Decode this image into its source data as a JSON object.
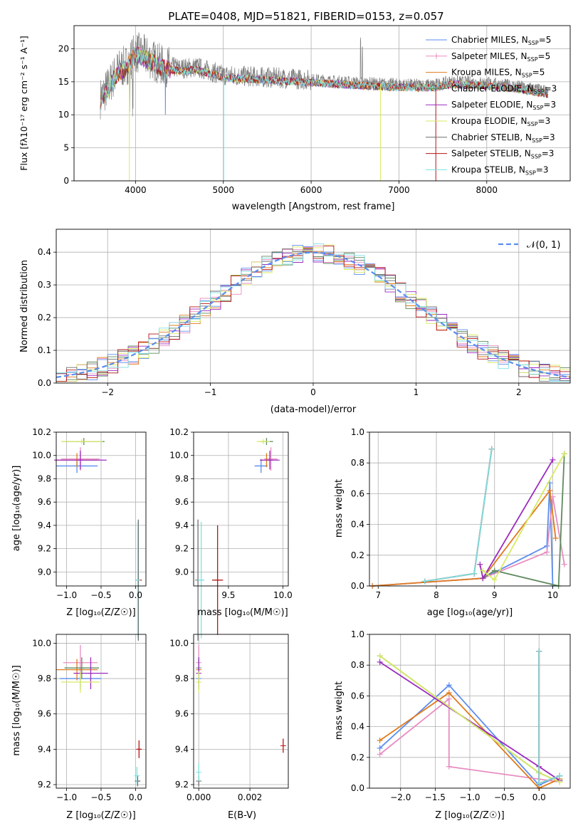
{
  "colors": {
    "chabrier_miles": "#5b8def",
    "salpeter_miles": "#e88cc0",
    "kroupa_miles": "#e07b1d",
    "chabrier_elodie": "#5f8a5f",
    "salpeter_elodie": "#9b2bbf",
    "kroupa_elodie": "#d7ea63",
    "chabrier_stelib": "#6e6e6e",
    "salpeter_stelib": "#b81414",
    "kroupa_stelib": "#7fe0e0"
  },
  "chart_data": [
    {
      "id": "spectrum",
      "type": "line",
      "title": "PLATE=0408, MJD=51821, FIBERID=0153, z=0.057",
      "xlabel": "wavelength [Angstrom, rest frame]",
      "ylabel": "Flux [f_λ10^-17 erg cm^-2 s^-1 A^-1]",
      "xlim": [
        3300,
        8950
      ],
      "ylim": [
        0,
        23.5
      ],
      "xticks": [
        "4000",
        "5000",
        "6000",
        "7000",
        "8000"
      ],
      "yticks": [
        "0",
        "5",
        "10",
        "15",
        "20"
      ],
      "legend_position": "top-right",
      "legend": [
        {
          "label": "Chabrier MILES, N",
          "sub": "SSP",
          "tail": "=5",
          "color": "#5b8def"
        },
        {
          "label": "Salpeter MILES, N",
          "sub": "SSP",
          "tail": "=5",
          "color": "#e88cc0"
        },
        {
          "label": "Kroupa MILES, N",
          "sub": "SSP",
          "tail": "=5",
          "color": "#e07b1d"
        },
        {
          "label": "Chabrier ELODIE, N",
          "sub": "SSP",
          "tail": "=3",
          "color": "#5f8a5f"
        },
        {
          "label": "Salpeter ELODIE, N",
          "sub": "SSP",
          "tail": "=3",
          "color": "#9b2bbf"
        },
        {
          "label": "Kroupa ELODIE, N",
          "sub": "SSP",
          "tail": "=3",
          "color": "#d7ea63"
        },
        {
          "label": "Chabrier STELIB, N",
          "sub": "SSP",
          "tail": "=3",
          "color": "#6e6e6e"
        },
        {
          "label": "Salpeter STELIB, N",
          "sub": "SSP",
          "tail": "=3",
          "color": "#b81414"
        },
        {
          "label": "Kroupa STELIB, N",
          "sub": "SSP",
          "tail": "=3",
          "color": "#7fe0e0"
        }
      ],
      "continuum": {
        "x": [
          3600,
          3700,
          3800,
          3900,
          4000,
          4100,
          4300,
          4500,
          4700,
          5000,
          5300,
          5600,
          6000,
          6300,
          6600,
          6900,
          7200,
          7400,
          7600,
          8000,
          8400,
          8700
        ],
        "y": [
          12.5,
          14.5,
          16.8,
          17.5,
          19.5,
          19.0,
          17.5,
          17.0,
          17.2,
          16.0,
          15.8,
          15.6,
          15.3,
          15.0,
          14.8,
          14.6,
          14.5,
          14.5,
          15.0,
          14.8,
          14.2,
          13.5
        ]
      }
    },
    {
      "id": "residuals",
      "type": "step",
      "xlabel": "(data-model)/error",
      "ylabel": "Normed distribution",
      "xlim": [
        -2.5,
        2.5
      ],
      "ylim": [
        0,
        0.47
      ],
      "xticks": [
        "−2",
        "−1",
        "0",
        "1",
        "2"
      ],
      "yticks": [
        "0.0",
        "0.1",
        "0.2",
        "0.3",
        "0.4"
      ],
      "reference_label": "𝒩(0, 1)",
      "reference_color": "#5b8def",
      "bin_width": 0.1
    },
    {
      "id": "age_vs_Z",
      "type": "scatter",
      "xlabel": "Z [log₁₀(Z/Z☉)]",
      "ylabel": "age  [log₁₀(age/yr)]",
      "xlim": [
        -1.15,
        0.15
      ],
      "ylim": [
        8.88,
        10.2
      ],
      "xticks": [
        "−1.0",
        "−0.5",
        "0.0"
      ],
      "yticks": [
        "9.0",
        "9.2",
        "9.4",
        "9.6",
        "9.8",
        "10.0",
        "10.2"
      ],
      "points": [
        {
          "x": -0.85,
          "y": 9.91,
          "xerr": 0.3,
          "yerr": 0.06,
          "color": "#5b8def"
        },
        {
          "x": -0.8,
          "y": 9.97,
          "xerr": 0.28,
          "yerr": 0.1,
          "color": "#e88cc0"
        },
        {
          "x": -0.85,
          "y": 9.96,
          "xerr": 0.3,
          "yerr": 0.06,
          "color": "#e07b1d"
        },
        {
          "x": -0.75,
          "y": 10.12,
          "xerr": 0.3,
          "yerr": 0.03,
          "color": "#5f8a5f"
        },
        {
          "x": -0.8,
          "y": 9.96,
          "xerr": 0.38,
          "yerr": 0.08,
          "color": "#9b2bbf"
        },
        {
          "x": -0.78,
          "y": 10.12,
          "xerr": 0.3,
          "yerr": 0.02,
          "color": "#d7ea63"
        },
        {
          "x": 0.04,
          "y": 8.93,
          "xerr": 0.03,
          "yerr": 0.52,
          "color": "#6e6e6e"
        },
        {
          "x": 0.05,
          "y": 8.93,
          "xerr": 0.03,
          "yerr": 0.0,
          "color": "#b81414"
        },
        {
          "x": 0.03,
          "y": 8.93,
          "xerr": 0.03,
          "yerr": 0.5,
          "color": "#7fe0e0"
        }
      ]
    },
    {
      "id": "age_vs_mass",
      "type": "scatter",
      "xlabel": "mass [log₁₀(M/M☉)]",
      "ylabel": "",
      "xlim": [
        9.18,
        10.05
      ],
      "ylim": [
        8.88,
        10.2
      ],
      "xticks": [
        "9.5",
        "10.0"
      ],
      "yticks": [
        "9.0",
        "9.2",
        "9.4",
        "9.6",
        "9.8",
        "10.0",
        "10.2"
      ],
      "points": [
        {
          "x": 9.8,
          "y": 9.91,
          "xerr": 0.06,
          "yerr": 0.06,
          "color": "#5b8def"
        },
        {
          "x": 9.89,
          "y": 9.97,
          "xerr": 0.06,
          "yerr": 0.1,
          "color": "#e88cc0"
        },
        {
          "x": 9.85,
          "y": 9.96,
          "xerr": 0.06,
          "yerr": 0.06,
          "color": "#e07b1d"
        },
        {
          "x": 9.85,
          "y": 10.12,
          "xerr": 0.06,
          "yerr": 0.03,
          "color": "#5f8a5f"
        },
        {
          "x": 9.88,
          "y": 9.96,
          "xerr": 0.09,
          "yerr": 0.08,
          "color": "#9b2bbf"
        },
        {
          "x": 9.82,
          "y": 10.12,
          "xerr": 0.06,
          "yerr": 0.02,
          "color": "#d7ea63"
        },
        {
          "x": 9.22,
          "y": 8.93,
          "xerr": 0.0,
          "yerr": 0.52,
          "color": "#6e6e6e"
        },
        {
          "x": 9.4,
          "y": 8.93,
          "xerr": 0.05,
          "yerr": 0.47,
          "color": "#b81414"
        },
        {
          "x": 9.25,
          "y": 8.93,
          "xerr": 0.03,
          "yerr": 0.5,
          "color": "#7fe0e0"
        }
      ]
    },
    {
      "id": "weight_vs_age",
      "type": "line",
      "xlabel": "age  [log₁₀(age/yr)]",
      "ylabel": "mass weight",
      "xlim": [
        6.85,
        10.3
      ],
      "ylim": [
        0,
        1.0
      ],
      "xticks": [
        "7",
        "8",
        "9",
        "10"
      ],
      "yticks": [
        "0.0",
        "0.2",
        "0.4",
        "0.6",
        "0.8",
        "1.0"
      ],
      "series": [
        {
          "color": "#5b8def",
          "x": [
            6.9,
            8.8,
            9.9,
            9.95,
            10.0
          ],
          "y": [
            0.0,
            0.05,
            0.26,
            0.67,
            0.0
          ]
        },
        {
          "color": "#e88cc0",
          "x": [
            6.9,
            8.8,
            9.9,
            10.0,
            10.2
          ],
          "y": [
            0.0,
            0.05,
            0.22,
            0.58,
            0.14
          ]
        },
        {
          "color": "#e07b1d",
          "x": [
            6.9,
            8.8,
            9.95,
            10.05
          ],
          "y": [
            0.0,
            0.05,
            0.62,
            0.31
          ]
        },
        {
          "color": "#5f8a5f",
          "x": [
            8.8,
            9.0,
            10.1,
            10.2
          ],
          "y": [
            0.05,
            0.1,
            0.0,
            0.86
          ]
        },
        {
          "color": "#9b2bbf",
          "x": [
            8.75,
            8.8,
            10.0
          ],
          "y": [
            0.14,
            0.05,
            0.82
          ]
        },
        {
          "color": "#d7ea63",
          "x": [
            8.8,
            9.0,
            10.2
          ],
          "y": [
            0.1,
            0.04,
            0.86
          ]
        },
        {
          "color": "#6e6e6e",
          "x": [
            7.8,
            8.65,
            8.95
          ],
          "y": [
            0.03,
            0.08,
            0.89
          ]
        },
        {
          "color": "#b81414",
          "x": [
            7.8,
            8.65,
            8.95
          ],
          "y": [
            0.03,
            0.08,
            0.89
          ]
        },
        {
          "color": "#7fe0e0",
          "x": [
            7.8,
            8.65,
            8.95
          ],
          "y": [
            0.03,
            0.08,
            0.89
          ]
        }
      ]
    },
    {
      "id": "mass_vs_Z",
      "type": "scatter",
      "xlabel": "Z [log₁₀(Z/Z☉)]",
      "ylabel": "mass [log₁₀(M/M☉)]",
      "xlim": [
        -1.15,
        0.15
      ],
      "ylim": [
        9.18,
        10.05
      ],
      "xticks": [
        "−1.0",
        "−0.5",
        "0.0"
      ],
      "yticks": [
        "9.2",
        "9.4",
        "9.6",
        "9.8",
        "10.0"
      ],
      "points": [
        {
          "x": -0.8,
          "y": 9.8,
          "xerr": 0.3,
          "yerr": 0.06,
          "color": "#5b8def"
        },
        {
          "x": -0.8,
          "y": 9.89,
          "xerr": 0.25,
          "yerr": 0.1,
          "color": "#e88cc0"
        },
        {
          "x": -0.85,
          "y": 9.85,
          "xerr": 0.3,
          "yerr": 0.06,
          "color": "#e07b1d"
        },
        {
          "x": -0.78,
          "y": 9.86,
          "xerr": 0.25,
          "yerr": 0.06,
          "color": "#5f8a5f"
        },
        {
          "x": -0.65,
          "y": 9.83,
          "xerr": 0.25,
          "yerr": 0.09,
          "color": "#9b2bbf"
        },
        {
          "x": -0.8,
          "y": 9.78,
          "xerr": 0.28,
          "yerr": 0.06,
          "color": "#d7ea63"
        },
        {
          "x": 0.03,
          "y": 9.22,
          "xerr": 0.03,
          "yerr": 0.03,
          "color": "#6e6e6e"
        },
        {
          "x": 0.05,
          "y": 9.4,
          "xerr": 0.03,
          "yerr": 0.05,
          "color": "#b81414"
        },
        {
          "x": 0.02,
          "y": 9.25,
          "xerr": 0.03,
          "yerr": 0.05,
          "color": "#7fe0e0"
        }
      ]
    },
    {
      "id": "mass_vs_EBV",
      "type": "scatter",
      "xlabel": "E(B-V)",
      "ylabel": "",
      "xlim": [
        -0.0002,
        0.0035
      ],
      "ylim": [
        9.18,
        10.05
      ],
      "xticks": [
        "0.000",
        "0.002"
      ],
      "yticks": [
        "9.2",
        "9.4",
        "9.6",
        "9.8",
        "10.0"
      ],
      "points": [
        {
          "x": 0.0,
          "y": 9.8,
          "xerr": 0,
          "yerr": 0.06,
          "color": "#5b8def"
        },
        {
          "x": 0.0,
          "y": 9.89,
          "xerr": 0,
          "yerr": 0.1,
          "color": "#e88cc0"
        },
        {
          "x": 0.0,
          "y": 9.85,
          "xerr": 0,
          "yerr": 0.06,
          "color": "#e07b1d"
        },
        {
          "x": 0.0,
          "y": 9.86,
          "xerr": 0,
          "yerr": 0.06,
          "color": "#5f8a5f"
        },
        {
          "x": 0.0,
          "y": 9.83,
          "xerr": 0,
          "yerr": 0.09,
          "color": "#9b2bbf"
        },
        {
          "x": 0.0,
          "y": 9.78,
          "xerr": 0,
          "yerr": 0.06,
          "color": "#d7ea63"
        },
        {
          "x": 0.0,
          "y": 9.22,
          "xerr": 0,
          "yerr": 0.03,
          "color": "#6e6e6e"
        },
        {
          "x": 0.0033,
          "y": 9.42,
          "xerr": 0,
          "yerr": 0.04,
          "color": "#b81414"
        },
        {
          "x": 0.0,
          "y": 9.27,
          "xerr": 0,
          "yerr": 0.05,
          "color": "#7fe0e0"
        }
      ]
    },
    {
      "id": "weight_vs_Z",
      "type": "line",
      "xlabel": "Z [log₁₀(Z/Z☉)]",
      "ylabel": "mass weight",
      "xlim": [
        -2.45,
        0.45
      ],
      "ylim": [
        0,
        1.0
      ],
      "xticks": [
        "−2.0",
        "−1.5",
        "−1.0",
        "−0.5",
        "0.0"
      ],
      "yticks": [
        "0.0",
        "0.2",
        "0.4",
        "0.6",
        "0.8",
        "1.0"
      ],
      "series": [
        {
          "color": "#5b8def",
          "x": [
            -2.3,
            -1.3,
            0.0,
            0.3
          ],
          "y": [
            0.26,
            0.67,
            0.02,
            0.08
          ]
        },
        {
          "color": "#e88cc0",
          "x": [
            -2.3,
            -1.3,
            -1.3,
            0.3
          ],
          "y": [
            0.22,
            0.58,
            0.14,
            0.04
          ]
        },
        {
          "color": "#e07b1d",
          "x": [
            -2.3,
            -1.3,
            0.0,
            0.3
          ],
          "y": [
            0.31,
            0.62,
            0.0,
            0.06
          ]
        },
        {
          "color": "#5f8a5f",
          "x": [
            -2.3,
            0.0,
            0.3
          ],
          "y": [
            0.86,
            0.1,
            0.04
          ]
        },
        {
          "color": "#9b2bbf",
          "x": [
            -2.3,
            0.0,
            0.3
          ],
          "y": [
            0.82,
            0.14,
            0.05
          ]
        },
        {
          "color": "#d7ea63",
          "x": [
            -2.3,
            0.0,
            0.3
          ],
          "y": [
            0.86,
            0.1,
            0.04
          ]
        },
        {
          "color": "#6e6e6e",
          "x": [
            0.0,
            0.0,
            0.3
          ],
          "y": [
            0.89,
            0.03,
            0.08
          ]
        },
        {
          "color": "#b81414",
          "x": [
            0.0,
            0.0,
            0.3
          ],
          "y": [
            0.89,
            0.03,
            0.08
          ]
        },
        {
          "color": "#7fe0e0",
          "x": [
            0.0,
            0.0,
            0.3
          ],
          "y": [
            0.89,
            0.03,
            0.08
          ]
        }
      ]
    }
  ]
}
